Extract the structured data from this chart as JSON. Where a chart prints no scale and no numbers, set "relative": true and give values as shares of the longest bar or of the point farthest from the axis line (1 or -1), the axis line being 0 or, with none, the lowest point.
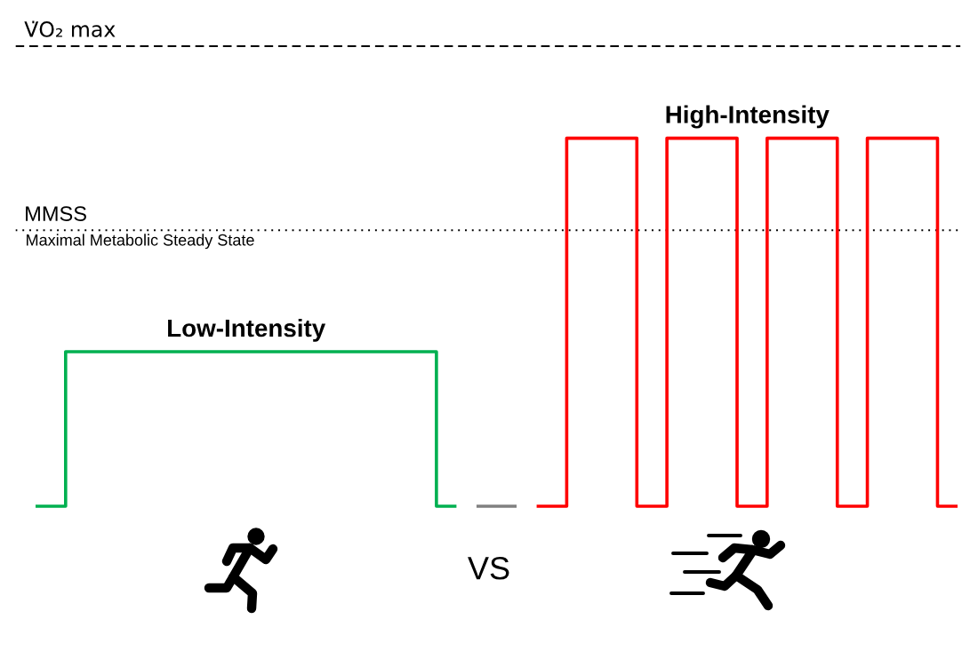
{
  "chart_data": {
    "type": "step",
    "relative": true,
    "marker": "none",
    "line_style": "solid",
    "legend": false,
    "categories": [
      null,
      null,
      null,
      null,
      null,
      null,
      null,
      null,
      null,
      null,
      null,
      null,
      null,
      null,
      null,
      null,
      null,
      null,
      null,
      null,
      null,
      null,
      null,
      null,
      null,
      null,
      null,
      null,
      null,
      null,
      null,
      null,
      null,
      null,
      null,
      null,
      null,
      null,
      null,
      null,
      null,
      null,
      null,
      null,
      null,
      null,
      null,
      null,
      null,
      null,
      null,
      null,
      null,
      null,
      null,
      null,
      null,
      null,
      null,
      null,
      null,
      null,
      null,
      null,
      null,
      null,
      null,
      null,
      null,
      null,
      null,
      null,
      null,
      null,
      null,
      null,
      null,
      null,
      null,
      null,
      null,
      null,
      null,
      null,
      null,
      null,
      null,
      null,
      null,
      null,
      null,
      null,
      null
    ],
    "series": [
      {
        "name": "Low-Intensity",
        "color": "#00b050",
        "values": [
          0,
          0,
          0,
          0.42,
          0.42,
          0.42,
          0.42,
          0.42,
          0.42,
          0.42,
          0.42,
          0.42,
          0.42,
          0.42,
          0.42,
          0.42,
          0.42,
          0.42,
          0.42,
          0.42,
          0.42,
          0.42,
          0.42,
          0.42,
          0.42,
          0.42,
          0.42,
          0.42,
          0.42,
          0.42,
          0.42,
          0.42,
          0.42,
          0.42,
          0.42,
          0.42,
          0.42,
          0.42,
          0.42,
          0.42,
          0,
          0,
          0,
          null,
          null,
          null,
          null,
          null,
          null,
          null,
          null,
          null,
          null,
          null,
          null,
          null,
          null,
          null,
          null,
          null,
          null,
          null,
          null,
          null,
          null,
          null,
          null,
          null,
          null,
          null,
          null,
          null,
          null,
          null,
          null,
          null,
          null,
          null,
          null,
          null,
          null,
          null,
          null,
          null,
          null,
          null,
          null,
          null,
          null,
          null,
          null,
          null,
          null
        ]
      },
      {
        "color": "#808080",
        "values": [
          null,
          null,
          null,
          null,
          null,
          null,
          null,
          null,
          null,
          null,
          null,
          null,
          null,
          null,
          null,
          null,
          null,
          null,
          null,
          null,
          null,
          null,
          null,
          null,
          null,
          null,
          null,
          null,
          null,
          null,
          null,
          null,
          null,
          null,
          null,
          null,
          null,
          null,
          null,
          null,
          null,
          null,
          null,
          null,
          0,
          0,
          0,
          0,
          0,
          null,
          null,
          null,
          null,
          null,
          null,
          null,
          null,
          null,
          null,
          null,
          null,
          null,
          null,
          null,
          null,
          null,
          null,
          null,
          null,
          null,
          null,
          null,
          null,
          null,
          null,
          null,
          null,
          null,
          null,
          null,
          null,
          null,
          null,
          null,
          null,
          null,
          null,
          null,
          null,
          null,
          null,
          null,
          null
        ]
      },
      {
        "name": "High-Intensity",
        "color": "#ff0000",
        "values": [
          null,
          null,
          null,
          null,
          null,
          null,
          null,
          null,
          null,
          null,
          null,
          null,
          null,
          null,
          null,
          null,
          null,
          null,
          null,
          null,
          null,
          null,
          null,
          null,
          null,
          null,
          null,
          null,
          null,
          null,
          null,
          null,
          null,
          null,
          null,
          null,
          null,
          null,
          null,
          null,
          null,
          null,
          null,
          null,
          null,
          null,
          null,
          null,
          null,
          null,
          0,
          0,
          0,
          1,
          1,
          1,
          1,
          1,
          1,
          1,
          0,
          0,
          0,
          1,
          1,
          1,
          1,
          1,
          1,
          1,
          0,
          0,
          0,
          1,
          1,
          1,
          1,
          1,
          1,
          1,
          0,
          0,
          0,
          1,
          1,
          1,
          1,
          1,
          1,
          1,
          0,
          0,
          0
        ]
      }
    ],
    "ref_lines": [
      {
        "axis": "y",
        "value": 1.25,
        "label": "V̇O₂ max",
        "line_style": "dashed",
        "color": "#000000"
      },
      {
        "axis": "y",
        "value": 0.75,
        "label": "MMSS",
        "line_style": "dotted",
        "color": "#000000"
      }
    ],
    "annotations": [
      {
        "text": "Maximal Metabolic Steady State",
        "y": 0.75
      },
      "VS"
    ]
  }
}
